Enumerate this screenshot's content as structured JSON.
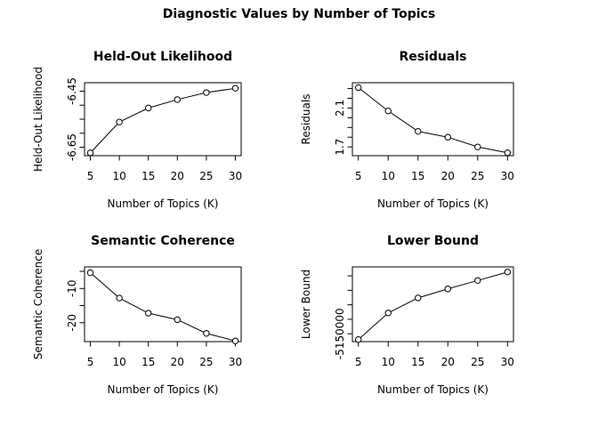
{
  "page_title": "Diagnostic Values by Number of Topics",
  "colors": {
    "background": "#ffffff",
    "foreground": "#000000"
  },
  "chart_data": [
    {
      "id": "held-out-likelihood",
      "type": "line",
      "title": "Held-Out Likelihood",
      "xlabel": "Number of Topics (K)",
      "ylabel": "Held-Out Likelihood",
      "x": [
        5,
        10,
        15,
        20,
        25,
        30
      ],
      "y": [
        -6.67,
        -6.56,
        -6.51,
        -6.48,
        -6.455,
        -6.44
      ],
      "xlim": [
        4,
        31
      ],
      "ylim": [
        -6.68,
        -6.42
      ],
      "xtick_values": [
        5,
        10,
        15,
        20,
        25,
        30
      ],
      "xtick_labels": [
        "5",
        "10",
        "15",
        "20",
        "25",
        "30"
      ],
      "ytick_values": [
        -6.65,
        -6.6,
        -6.55,
        -6.5,
        -6.45
      ],
      "ytick_labels": [
        "-6.65",
        "",
        "",
        "",
        "-6.45"
      ],
      "marker": "open-circle",
      "grid": false,
      "legend": "none"
    },
    {
      "id": "residuals",
      "type": "line",
      "title": "Residuals",
      "xlabel": "Number of Topics (K)",
      "ylabel": "Residuals",
      "x": [
        5,
        10,
        15,
        20,
        25,
        30
      ],
      "y": [
        2.31,
        2.07,
        1.86,
        1.8,
        1.7,
        1.64
      ],
      "xlim": [
        4,
        31
      ],
      "ylim": [
        1.61,
        2.36
      ],
      "xtick_values": [
        5,
        10,
        15,
        20,
        25,
        30
      ],
      "xtick_labels": [
        "5",
        "10",
        "15",
        "20",
        "25",
        "30"
      ],
      "ytick_values": [
        1.7,
        1.8,
        1.9,
        2.0,
        2.1,
        2.2,
        2.3
      ],
      "ytick_labels": [
        "1.7",
        "",
        "",
        "",
        "2.1",
        "",
        ""
      ],
      "marker": "open-circle",
      "grid": false,
      "legend": "none"
    },
    {
      "id": "semantic-coherence",
      "type": "line",
      "title": "Semantic Coherence",
      "xlabel": "Number of Topics (K)",
      "ylabel": "Semantic Coherence",
      "x": [
        5,
        10,
        15,
        20,
        25,
        30
      ],
      "y": [
        -5.4,
        -12.8,
        -17.2,
        -19.1,
        -23.1,
        -25.3
      ],
      "xlim": [
        4,
        31
      ],
      "ylim": [
        -25.5,
        -3.7
      ],
      "xtick_values": [
        5,
        10,
        15,
        20,
        25,
        30
      ],
      "xtick_labels": [
        "5",
        "10",
        "15",
        "20",
        "25",
        "30"
      ],
      "ytick_values": [
        -20,
        -15,
        -10,
        -5
      ],
      "ytick_labels": [
        "-20",
        "",
        "-10",
        ""
      ],
      "marker": "open-circle",
      "grid": false,
      "legend": "none"
    },
    {
      "id": "lower-bound",
      "type": "line",
      "title": "Lower Bound",
      "xlabel": "Number of Topics (K)",
      "ylabel": "Lower Bound",
      "x": [
        5,
        10,
        15,
        20,
        25,
        30
      ],
      "y": [
        -5152000,
        -5142800,
        -5137600,
        -5134500,
        -5131600,
        -5128700
      ],
      "xlim": [
        4,
        31
      ],
      "ylim": [
        -5152700,
        -5126900
      ],
      "xtick_values": [
        5,
        10,
        15,
        20,
        25,
        30
      ],
      "xtick_labels": [
        "5",
        "10",
        "15",
        "20",
        "25",
        "30"
      ],
      "ytick_values": [
        -5150000,
        -5145000,
        -5140000,
        -5135000,
        -5130000
      ],
      "ytick_labels": [
        "-5150000",
        "",
        "",
        "",
        ""
      ],
      "marker": "open-circle",
      "grid": false,
      "legend": "none"
    }
  ]
}
